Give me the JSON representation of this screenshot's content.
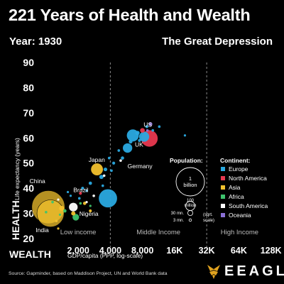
{
  "title": "221 Years of Health and Wealth",
  "year_label": "Year: 1930",
  "event_label": "The Great Depression",
  "source": "Source: Gapminder, based on Maddison Project, UN and World Bank data",
  "brand": "EEAGLI",
  "colors": {
    "Europe": "#2aa9e0",
    "North America": "#e8384f",
    "Asia": "#f2c12e",
    "Africa": "#3ec46d",
    "South America": "#ffffff",
    "Oceania": "#8a6fd6"
  },
  "chart_data": {
    "type": "scatter",
    "x_scale": "log",
    "xlabel": "WEALTH",
    "xlabel_sub": "GDP/capita (PPP, log-scale)",
    "ylabel": "HEALTH",
    "ylabel_sub": "Life expectancy (years)",
    "xlim": [
      900,
      150000
    ],
    "ylim": [
      20,
      90
    ],
    "x_ticks": [
      {
        "v": 2000,
        "label": "2,000"
      },
      {
        "v": 4000,
        "label": "4,000"
      },
      {
        "v": 8000,
        "label": "8,000"
      },
      {
        "v": 16000,
        "label": "16K"
      },
      {
        "v": 32000,
        "label": "32K"
      },
      {
        "v": 64000,
        "label": "64K"
      },
      {
        "v": 128000,
        "label": "128K"
      }
    ],
    "y_ticks": [
      20,
      30,
      40,
      50,
      60,
      70,
      80,
      90
    ],
    "income_lines": [
      4000,
      32000
    ],
    "income_labels": [
      {
        "x": 2000,
        "label": "Low income"
      },
      {
        "x": 11300,
        "label": "Middle Income"
      },
      {
        "x": 65000,
        "label": "High Income"
      }
    ],
    "annotations": [
      {
        "text": "US",
        "x": 8200,
        "y": 64.5
      },
      {
        "text": "UK",
        "x": 6800,
        "y": 56.5
      },
      {
        "text": "Japan",
        "x": 2500,
        "y": 50.5
      },
      {
        "text": "Germany",
        "x": 5800,
        "y": 48
      },
      {
        "text": "China",
        "x": 700,
        "y": 42
      },
      {
        "text": "Brazil",
        "x": 1800,
        "y": 38.5
      },
      {
        "text": "Nigeria",
        "x": 2050,
        "y": 29
      },
      {
        "text": "India",
        "x": 800,
        "y": 22.5
      }
    ],
    "legend_population": {
      "title": "Population:",
      "sizes": [
        "1 billion",
        "100 million",
        "30 mn.",
        "3 mn."
      ],
      "note": "(sqrt. scale)"
    },
    "legend_continent": {
      "title": "Continent:",
      "items": [
        "Europe",
        "North America",
        "Asia",
        "Africa",
        "South America",
        "Oceania"
      ]
    },
    "points": [
      {
        "country": "China",
        "continent": "Asia",
        "x": 1050,
        "y": 32.5,
        "pop": 490
      },
      {
        "country": "India",
        "continent": "Asia",
        "x": 1100,
        "y": 30,
        "pop": 330
      },
      {
        "country": "US",
        "continent": "North America",
        "x": 9300,
        "y": 59.8,
        "pop": 123
      },
      {
        "country": "UK",
        "continent": "Europe",
        "x": 8300,
        "y": 60.5,
        "pop": 46
      },
      {
        "country": "Germany",
        "continent": "Europe",
        "x": 6500,
        "y": 61,
        "pop": 65
      },
      {
        "country": "Japan",
        "continent": "Asia",
        "x": 3000,
        "y": 47.5,
        "pop": 64
      },
      {
        "country": "Brazil",
        "continent": "South America",
        "x": 1800,
        "y": 32.5,
        "pop": 34
      },
      {
        "country": "Nigeria",
        "continent": "Africa",
        "x": 1900,
        "y": 28.5,
        "pop": 20
      },
      {
        "country": "",
        "continent": "Europe",
        "x": 3800,
        "y": 36,
        "pop": 150
      },
      {
        "country": "",
        "continent": "Europe",
        "x": 5800,
        "y": 56,
        "pop": 40
      },
      {
        "country": "",
        "continent": "Europe",
        "x": 7200,
        "y": 62,
        "pop": 8
      },
      {
        "country": "",
        "continent": "Europe",
        "x": 8800,
        "y": 64.5,
        "pop": 4
      },
      {
        "country": "",
        "continent": "Europe",
        "x": 6200,
        "y": 58.5,
        "pop": 6
      },
      {
        "country": "",
        "continent": "Europe",
        "x": 5200,
        "y": 52,
        "pop": 5
      },
      {
        "country": "",
        "continent": "Europe",
        "x": 4800,
        "y": 55,
        "pop": 3
      },
      {
        "country": "",
        "continent": "Europe",
        "x": 4300,
        "y": 50,
        "pop": 4
      },
      {
        "country": "",
        "continent": "Europe",
        "x": 4100,
        "y": 47,
        "pop": 3
      },
      {
        "country": "",
        "continent": "Europe",
        "x": 3600,
        "y": 47.5,
        "pop": 6
      },
      {
        "country": "",
        "continent": "Europe",
        "x": 3300,
        "y": 44.5,
        "pop": 8
      },
      {
        "country": "",
        "continent": "Europe",
        "x": 3400,
        "y": 41,
        "pop": 3
      },
      {
        "country": "",
        "continent": "Europe",
        "x": 2600,
        "y": 42,
        "pop": 5
      },
      {
        "country": "",
        "continent": "Europe",
        "x": 2400,
        "y": 39,
        "pop": 3
      },
      {
        "country": "",
        "continent": "Europe",
        "x": 2200,
        "y": 40,
        "pop": 4
      },
      {
        "country": "",
        "continent": "Europe",
        "x": 2050,
        "y": 36,
        "pop": 3
      },
      {
        "country": "",
        "continent": "Europe",
        "x": 1700,
        "y": 37,
        "pop": 2
      },
      {
        "country": "",
        "continent": "Europe",
        "x": 3900,
        "y": 52,
        "pop": 3
      },
      {
        "country": "",
        "continent": "Europe",
        "x": 10000,
        "y": 63,
        "pop": 3
      },
      {
        "country": "",
        "continent": "Europe",
        "x": 11500,
        "y": 64.5,
        "pop": 3
      },
      {
        "country": "",
        "continent": "Europe",
        "x": 20000,
        "y": 61,
        "pop": 2
      },
      {
        "country": "",
        "continent": "Europe",
        "x": 1600,
        "y": 38.5,
        "pop": 2
      },
      {
        "country": "",
        "continent": "Europe",
        "x": 7500,
        "y": 59,
        "pop": 4
      },
      {
        "country": "",
        "continent": "Asia",
        "x": 1400,
        "y": 32,
        "pop": 12
      },
      {
        "country": "",
        "continent": "Asia",
        "x": 1800,
        "y": 30,
        "pop": 8
      },
      {
        "country": "",
        "continent": "Asia",
        "x": 2300,
        "y": 34,
        "pop": 5
      },
      {
        "country": "",
        "continent": "Asia",
        "x": 1250,
        "y": 27,
        "pop": 3
      },
      {
        "country": "",
        "continent": "Asia",
        "x": 2600,
        "y": 31,
        "pop": 4
      },
      {
        "country": "",
        "continent": "Asia",
        "x": 1300,
        "y": 24,
        "pop": 2
      },
      {
        "country": "",
        "continent": "Africa",
        "x": 1150,
        "y": 34.5,
        "pop": 3
      },
      {
        "country": "",
        "continent": "Africa",
        "x": 1500,
        "y": 31,
        "pop": 5
      },
      {
        "country": "",
        "continent": "Africa",
        "x": 2100,
        "y": 34,
        "pop": 3
      },
      {
        "country": "",
        "continent": "Africa",
        "x": 1350,
        "y": 29.5,
        "pop": 2
      },
      {
        "country": "",
        "continent": "Africa",
        "x": 1000,
        "y": 30.5,
        "pop": 3
      },
      {
        "country": "",
        "continent": "Africa",
        "x": 2600,
        "y": 33,
        "pop": 2
      },
      {
        "country": "",
        "continent": "South America",
        "x": 1300,
        "y": 35.5,
        "pop": 2
      },
      {
        "country": "",
        "continent": "South America",
        "x": 2800,
        "y": 37,
        "pop": 3
      },
      {
        "country": "",
        "continent": "South America",
        "x": 3500,
        "y": 45,
        "pop": 3
      },
      {
        "country": "",
        "continent": "South America",
        "x": 5000,
        "y": 51,
        "pop": 3
      },
      {
        "country": "",
        "continent": "South America",
        "x": 2400,
        "y": 34.5,
        "pop": 2
      },
      {
        "country": "",
        "continent": "North America",
        "x": 2100,
        "y": 38,
        "pop": 4
      },
      {
        "country": "",
        "continent": "North America",
        "x": 8000,
        "y": 63,
        "pop": 10
      },
      {
        "country": "",
        "continent": "Oceania",
        "x": 9500,
        "y": 65.5,
        "pop": 7
      },
      {
        "country": "",
        "continent": "Oceania",
        "x": 8900,
        "y": 63,
        "pop": 3
      }
    ]
  }
}
